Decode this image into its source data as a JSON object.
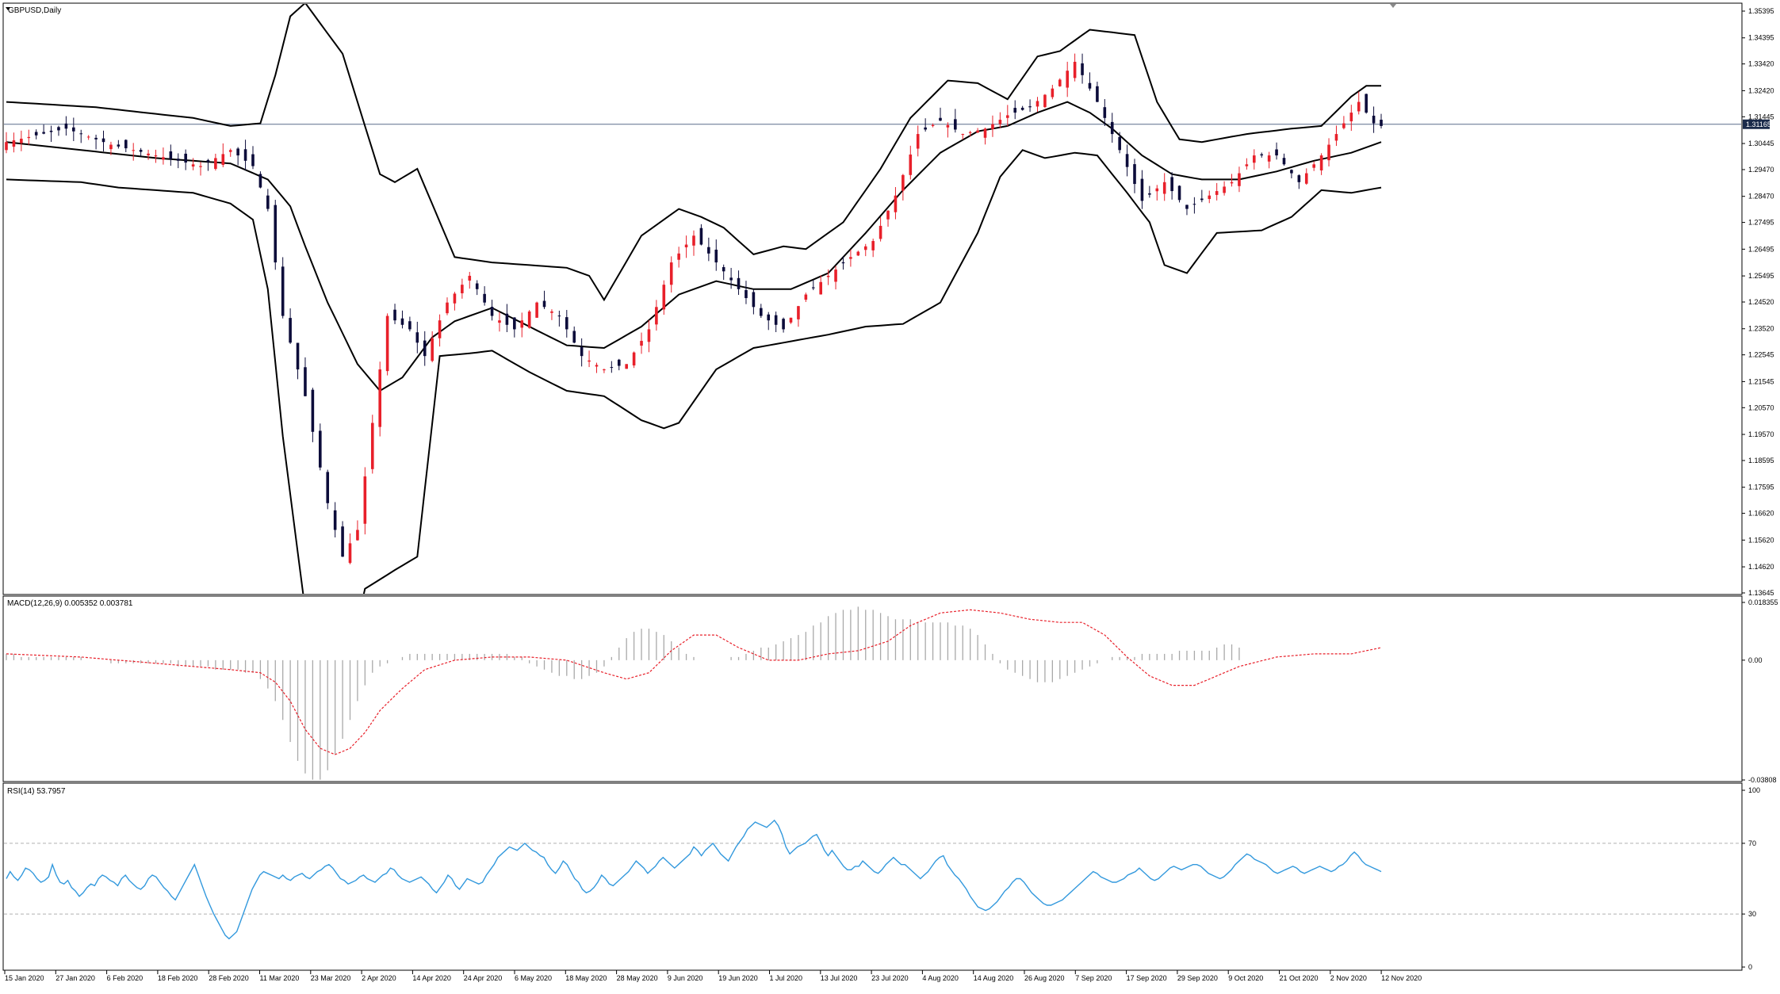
{
  "window": {
    "title": "GBPUSD,Daily"
  },
  "chart_data": [
    {
      "type": "candlestick",
      "panel": "main",
      "title": "GBPUSD,Daily",
      "ylim": [
        1.13645,
        1.35395
      ],
      "y_ticks": [
        "1.35395",
        "1.34395",
        "1.33420",
        "1.32420",
        "1.31445",
        "1.30445",
        "1.29470",
        "1.28470",
        "1.27495",
        "1.26495",
        "1.25495",
        "1.24520",
        "1.23520",
        "1.22545",
        "1.21545",
        "1.20570",
        "1.19570",
        "1.18595",
        "1.17595",
        "1.16620",
        "1.15620",
        "1.14620",
        "1.13645"
      ],
      "current_price_label": "1.31165",
      "current_price": 1.31165,
      "bollinger": {
        "upper": [
          [
            0,
            1.32
          ],
          [
            12,
            1.318
          ],
          [
            25,
            1.314
          ],
          [
            30,
            1.311
          ],
          [
            34,
            1.312
          ],
          [
            36,
            1.33
          ],
          [
            38,
            1.352
          ],
          [
            40,
            1.357
          ],
          [
            45,
            1.338
          ],
          [
            50,
            1.293
          ],
          [
            52,
            1.29
          ],
          [
            55,
            1.295
          ],
          [
            60,
            1.262
          ],
          [
            65,
            1.26
          ],
          [
            70,
            1.259
          ],
          [
            75,
            1.258
          ],
          [
            78,
            1.255
          ],
          [
            80,
            1.246
          ],
          [
            85,
            1.27
          ],
          [
            90,
            1.28
          ],
          [
            93,
            1.277
          ],
          [
            96,
            1.273
          ],
          [
            100,
            1.263
          ],
          [
            104,
            1.266
          ],
          [
            107,
            1.265
          ],
          [
            112,
            1.275
          ],
          [
            117,
            1.295
          ],
          [
            121,
            1.314
          ],
          [
            126,
            1.328
          ],
          [
            130,
            1.327
          ],
          [
            134,
            1.321
          ],
          [
            138,
            1.337
          ],
          [
            141,
            1.339
          ],
          [
            145,
            1.347
          ],
          [
            148,
            1.346
          ],
          [
            151,
            1.345
          ],
          [
            154,
            1.32
          ],
          [
            157,
            1.306
          ],
          [
            160,
            1.305
          ],
          [
            166,
            1.308
          ],
          [
            172,
            1.31
          ],
          [
            176,
            1.311
          ],
          [
            180,
            1.322
          ],
          [
            182,
            1.326
          ],
          [
            184,
            1.326
          ]
        ],
        "middle": [
          [
            0,
            1.305
          ],
          [
            10,
            1.302
          ],
          [
            20,
            1.299
          ],
          [
            30,
            1.297
          ],
          [
            35,
            1.291
          ],
          [
            38,
            1.281
          ],
          [
            40,
            1.266
          ],
          [
            43,
            1.245
          ],
          [
            47,
            1.222
          ],
          [
            50,
            1.212
          ],
          [
            53,
            1.217
          ],
          [
            57,
            1.232
          ],
          [
            60,
            1.238
          ],
          [
            65,
            1.243
          ],
          [
            70,
            1.236
          ],
          [
            75,
            1.229
          ],
          [
            80,
            1.228
          ],
          [
            85,
            1.236
          ],
          [
            90,
            1.248
          ],
          [
            95,
            1.253
          ],
          [
            100,
            1.25
          ],
          [
            105,
            1.25
          ],
          [
            110,
            1.256
          ],
          [
            115,
            1.271
          ],
          [
            120,
            1.287
          ],
          [
            125,
            1.301
          ],
          [
            130,
            1.309
          ],
          [
            134,
            1.311
          ],
          [
            138,
            1.316
          ],
          [
            142,
            1.32
          ],
          [
            145,
            1.316
          ],
          [
            148,
            1.31
          ],
          [
            152,
            1.3
          ],
          [
            156,
            1.293
          ],
          [
            160,
            1.291
          ],
          [
            165,
            1.291
          ],
          [
            170,
            1.294
          ],
          [
            175,
            1.298
          ],
          [
            180,
            1.301
          ],
          [
            184,
            1.305
          ]
        ],
        "lower": [
          [
            0,
            1.291
          ],
          [
            10,
            1.29
          ],
          [
            15,
            1.288
          ],
          [
            25,
            1.286
          ],
          [
            30,
            1.282
          ],
          [
            33,
            1.276
          ],
          [
            35,
            1.25
          ],
          [
            37,
            1.195
          ],
          [
            40,
            1.13
          ],
          [
            45,
            1.1
          ],
          [
            48,
            1.138
          ],
          [
            52,
            1.145
          ],
          [
            55,
            1.15
          ],
          [
            58,
            1.225
          ],
          [
            62,
            1.226
          ],
          [
            65,
            1.227
          ],
          [
            70,
            1.219
          ],
          [
            75,
            1.212
          ],
          [
            80,
            1.21
          ],
          [
            85,
            1.201
          ],
          [
            88,
            1.198
          ],
          [
            90,
            1.2
          ],
          [
            95,
            1.22
          ],
          [
            100,
            1.228
          ],
          [
            104,
            1.23
          ],
          [
            110,
            1.233
          ],
          [
            115,
            1.236
          ],
          [
            120,
            1.237
          ],
          [
            125,
            1.245
          ],
          [
            130,
            1.271
          ],
          [
            133,
            1.292
          ],
          [
            136,
            1.302
          ],
          [
            139,
            1.299
          ],
          [
            141,
            1.3
          ],
          [
            143,
            1.301
          ],
          [
            146,
            1.3
          ],
          [
            150,
            1.286
          ],
          [
            153,
            1.275
          ],
          [
            155,
            1.259
          ],
          [
            158,
            1.256
          ],
          [
            162,
            1.271
          ],
          [
            168,
            1.272
          ],
          [
            172,
            1.277
          ],
          [
            176,
            1.287
          ],
          [
            180,
            1.286
          ],
          [
            184,
            1.288
          ]
        ]
      }
    },
    {
      "type": "macd",
      "panel": "macd",
      "title": "MACD(12,26,9) 0.005352 0.003781",
      "ylim": [
        -0.03808,
        0.018355
      ],
      "y_ticks": [
        "0.018355",
        "0.00",
        "-0.03808"
      ],
      "signal_line": [
        [
          0,
          0.002
        ],
        [
          10,
          0.001
        ],
        [
          20,
          -0.001
        ],
        [
          30,
          -0.003
        ],
        [
          34,
          -0.004
        ],
        [
          36,
          -0.007
        ],
        [
          38,
          -0.013
        ],
        [
          40,
          -0.022
        ],
        [
          42,
          -0.028
        ],
        [
          44,
          -0.03
        ],
        [
          46,
          -0.028
        ],
        [
          48,
          -0.023
        ],
        [
          50,
          -0.016
        ],
        [
          53,
          -0.009
        ],
        [
          56,
          -0.003
        ],
        [
          60,
          0.0
        ],
        [
          65,
          0.001
        ],
        [
          70,
          0.001
        ],
        [
          75,
          0.0
        ],
        [
          80,
          -0.004
        ],
        [
          83,
          -0.006
        ],
        [
          86,
          -0.004
        ],
        [
          89,
          0.003
        ],
        [
          92,
          0.008
        ],
        [
          95,
          0.008
        ],
        [
          98,
          0.004
        ],
        [
          102,
          0.0
        ],
        [
          106,
          0.0
        ],
        [
          110,
          0.002
        ],
        [
          114,
          0.003
        ],
        [
          118,
          0.006
        ],
        [
          121,
          0.011
        ],
        [
          125,
          0.015
        ],
        [
          129,
          0.016
        ],
        [
          133,
          0.015
        ],
        [
          137,
          0.013
        ],
        [
          141,
          0.012
        ],
        [
          144,
          0.012
        ],
        [
          147,
          0.008
        ],
        [
          150,
          0.001
        ],
        [
          153,
          -0.005
        ],
        [
          156,
          -0.008
        ],
        [
          159,
          -0.008
        ],
        [
          162,
          -0.005
        ],
        [
          165,
          -0.002
        ],
        [
          170,
          0.001
        ],
        [
          175,
          0.002
        ],
        [
          180,
          0.002
        ],
        [
          184,
          0.004
        ]
      ],
      "histogram": [
        0.002,
        0.002,
        0.001,
        0.001,
        0.001,
        0.001,
        0.001,
        0.001,
        0.001,
        0.001,
        0.001,
        0.0,
        0.0,
        0.0,
        -0.001,
        -0.001,
        -0.001,
        -0.001,
        -0.001,
        -0.001,
        -0.001,
        -0.001,
        -0.001,
        -0.002,
        -0.002,
        -0.002,
        -0.002,
        -0.002,
        -0.003,
        -0.003,
        -0.003,
        -0.003,
        -0.004,
        -0.004,
        -0.006,
        -0.009,
        -0.013,
        -0.019,
        -0.026,
        -0.032,
        -0.036,
        -0.038,
        -0.038,
        -0.035,
        -0.03,
        -0.025,
        -0.019,
        -0.013,
        -0.008,
        -0.004,
        -0.002,
        -0.001,
        0.0,
        0.001,
        0.002,
        0.002,
        0.002,
        0.002,
        0.002,
        0.002,
        0.002,
        0.002,
        0.002,
        0.002,
        0.002,
        0.002,
        0.002,
        0.002,
        0.001,
        0.001,
        -0.001,
        -0.002,
        -0.003,
        -0.004,
        -0.005,
        -0.005,
        -0.006,
        -0.006,
        -0.005,
        -0.004,
        -0.002,
        0.001,
        0.004,
        0.007,
        0.009,
        0.01,
        0.01,
        0.009,
        0.008,
        0.006,
        0.004,
        0.002,
        0.001,
        0.0,
        0.0,
        0.0,
        0.0,
        0.001,
        0.001,
        0.002,
        0.003,
        0.004,
        0.004,
        0.005,
        0.006,
        0.007,
        0.008,
        0.009,
        0.011,
        0.012,
        0.014,
        0.015,
        0.016,
        0.016,
        0.017,
        0.016,
        0.016,
        0.015,
        0.014,
        0.013,
        0.013,
        0.013,
        0.012,
        0.012,
        0.012,
        0.012,
        0.012,
        0.011,
        0.011,
        0.01,
        0.008,
        0.005,
        0.002,
        -0.001,
        -0.003,
        -0.004,
        -0.005,
        -0.006,
        -0.007,
        -0.007,
        -0.007,
        -0.006,
        -0.005,
        -0.004,
        -0.003,
        -0.002,
        -0.001,
        0.0,
        0.001,
        0.001,
        0.001,
        0.001,
        0.002,
        0.002,
        0.002,
        0.002,
        0.002,
        0.003,
        0.003,
        0.003,
        0.003,
        0.003,
        0.004,
        0.005,
        0.005,
        0.004
      ]
    },
    {
      "type": "line",
      "panel": "rsi",
      "title": "RSI(14) 53.7957",
      "ylim": [
        0,
        100
      ],
      "y_ticks": [
        "100",
        "70",
        "30",
        "0"
      ],
      "levels": [
        70,
        30
      ],
      "values": [
        50,
        54,
        51,
        49,
        52,
        56,
        55,
        53,
        50,
        48,
        49,
        51,
        58,
        52,
        48,
        47,
        49,
        45,
        43,
        40,
        42,
        45,
        47,
        46,
        50,
        52,
        51,
        49,
        48,
        46,
        50,
        52,
        49,
        47,
        45,
        44,
        46,
        50,
        52,
        51,
        48,
        45,
        43,
        40,
        38,
        42,
        46,
        50,
        54,
        58,
        52,
        46,
        40,
        35,
        30,
        26,
        22,
        18,
        16,
        18,
        20,
        26,
        32,
        38,
        44,
        48,
        52,
        54,
        53,
        52,
        51,
        50,
        52,
        50,
        49,
        51,
        52,
        53,
        51,
        50,
        52,
        54,
        55,
        57,
        58,
        56,
        53,
        50,
        49,
        47,
        48,
        49,
        51,
        52,
        50,
        49,
        48,
        50,
        52,
        53,
        56,
        55,
        52,
        50,
        49,
        48,
        49,
        50,
        51,
        49,
        47,
        44,
        42,
        45,
        48,
        52,
        50,
        46,
        44,
        47,
        50,
        49,
        48,
        47,
        48,
        52,
        55,
        58,
        62,
        64,
        66,
        68,
        67,
        66,
        68,
        70,
        68,
        66,
        65,
        63,
        62,
        58,
        55,
        53,
        56,
        60,
        58,
        54,
        50,
        48,
        44,
        42,
        43,
        45,
        48,
        52,
        50,
        47,
        46,
        48,
        50,
        52,
        54,
        57,
        60,
        58,
        56,
        53,
        55,
        57,
        60,
        62,
        60,
        58,
        56,
        58,
        60,
        62,
        64,
        68,
        66,
        63,
        66,
        68,
        70,
        67,
        64,
        62,
        60,
        64,
        68,
        71,
        74,
        78,
        80,
        82,
        81,
        80,
        79,
        81,
        83,
        80,
        75,
        68,
        64,
        66,
        68,
        69,
        70,
        72,
        74,
        75,
        71,
        66,
        63,
        66,
        63,
        60,
        57,
        55,
        55,
        57,
        57,
        60,
        58,
        56,
        54,
        53,
        55,
        58,
        60,
        62,
        60,
        58,
        58,
        56,
        54,
        52,
        50,
        52,
        54,
        57,
        60,
        62,
        63,
        58,
        55,
        52,
        50,
        47,
        44,
        40,
        37,
        34,
        33,
        32,
        33,
        35,
        37,
        40,
        43,
        45,
        48,
        50,
        50,
        48,
        45,
        42,
        40,
        38,
        36,
        35,
        35,
        36,
        37,
        38,
        40,
        42,
        44,
        46,
        48,
        50,
        52,
        54,
        53,
        51,
        50,
        49,
        48,
        48,
        49,
        50,
        52,
        53,
        54,
        56,
        54,
        52,
        50,
        49,
        50,
        52,
        54,
        56,
        57,
        56,
        55,
        56,
        57,
        58,
        58,
        57,
        55,
        53,
        52,
        51,
        50,
        51,
        53,
        55,
        58,
        60,
        62,
        64,
        63,
        61,
        60,
        59,
        58,
        56,
        54,
        53,
        54,
        55,
        56,
        57,
        56,
        54,
        53,
        54,
        55,
        56,
        57,
        56,
        55,
        54,
        55,
        57,
        58,
        60,
        63,
        65,
        63,
        60,
        58,
        57,
        56,
        55,
        54
      ]
    }
  ],
  "x_axis": {
    "labels": [
      "15 Jan 2020",
      "27 Jan 2020",
      "6 Feb 2020",
      "18 Feb 2020",
      "28 Feb 2020",
      "11 Mar 2020",
      "23 Mar 2020",
      "2 Apr 2020",
      "14 Apr 2020",
      "24 Apr 2020",
      "6 May 2020",
      "18 May 2020",
      "28 May 2020",
      "9 Jun 2020",
      "19 Jun 2020",
      "1 Jul 2020",
      "13 Jul 2020",
      "23 Jul 2020",
      "4 Aug 2020",
      "14 Aug 2020",
      "26 Aug 2020",
      "7 Sep 2020",
      "17 Sep 2020",
      "29 Sep 2020",
      "9 Oct 2020",
      "21 Oct 2020",
      "2 Nov 2020",
      "12 Nov 2020"
    ]
  },
  "colors": {
    "bull": "#e8202a",
    "bear": "#0c0c3a",
    "bands": "#000000",
    "macd_hist": "#a9a9a9",
    "macd_signal": "#e8202a",
    "rsi": "#3399dd",
    "price_line": "#5a6c8c",
    "level_line": "#b0b0b0"
  }
}
